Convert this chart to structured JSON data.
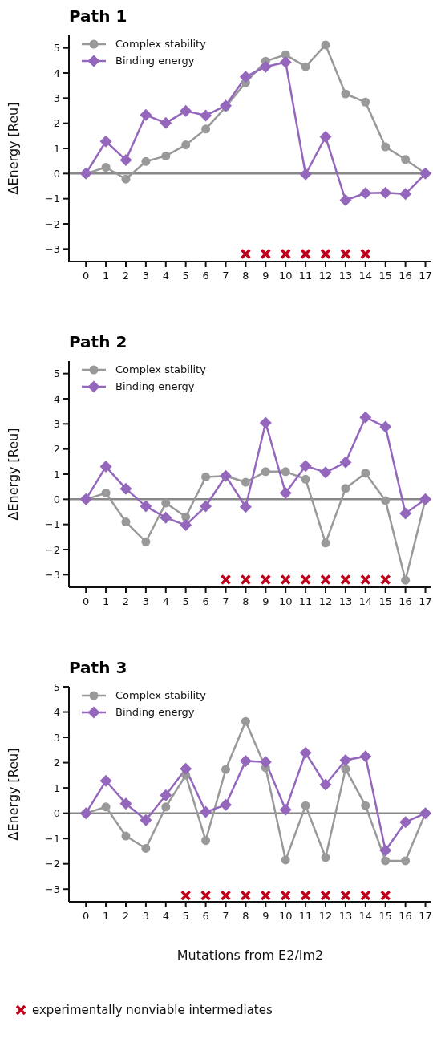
{
  "chart_data": [
    {
      "type": "line",
      "title": "Path 1",
      "ylabel": "ΔEnergy [Reu]",
      "x": [
        0,
        1,
        2,
        3,
        4,
        5,
        6,
        7,
        8,
        9,
        10,
        11,
        12,
        13,
        14,
        15,
        16,
        17
      ],
      "xlim": [
        -0.85,
        17.3
      ],
      "xticks": [
        0,
        1,
        2,
        3,
        4,
        5,
        6,
        7,
        8,
        9,
        10,
        11,
        12,
        13,
        14,
        15,
        16,
        17
      ],
      "ylim": [
        -3.5,
        5.5
      ],
      "yticks": [
        {
          "value": -3,
          "label": "−3"
        },
        {
          "value": -2,
          "label": "−2"
        },
        {
          "value": -1,
          "label": "−1"
        },
        0,
        1,
        2,
        3,
        4,
        5
      ],
      "legend": "top left",
      "line_style": "solid",
      "ref_lines": [
        {
          "axis": "y",
          "value": 0,
          "color": "#888888"
        }
      ],
      "series": [
        {
          "name": "Complex stability",
          "color": "#999999",
          "marker": "circle",
          "values": [
            0,
            0.25,
            -0.22,
            0.48,
            0.7,
            1.14,
            1.77,
            2.65,
            3.62,
            4.47,
            4.73,
            4.25,
            5.12,
            3.17,
            2.84,
            1.06,
            0.56,
            0
          ]
        },
        {
          "name": "Binding energy",
          "color": "#9467bd",
          "marker": "diamond",
          "values": [
            0,
            1.28,
            0.54,
            2.33,
            2.01,
            2.49,
            2.31,
            2.7,
            3.85,
            4.25,
            4.43,
            -0.03,
            1.46,
            -1.06,
            -0.78,
            -0.76,
            -0.81,
            0
          ]
        },
        {
          "type": "scatter",
          "color": "#c0001a",
          "marker": "cross",
          "x": [
            8,
            9,
            10,
            11,
            12,
            13,
            14
          ],
          "values": [
            -3.2,
            -3.2,
            -3.2,
            -3.2,
            -3.2,
            -3.2,
            -3.2
          ]
        }
      ]
    },
    {
      "type": "line",
      "title": "Path 2",
      "ylabel": "ΔEnergy [Reu]",
      "x": [
        0,
        1,
        2,
        3,
        4,
        5,
        6,
        7,
        8,
        9,
        10,
        11,
        12,
        13,
        14,
        15,
        16,
        17
      ],
      "xlim": [
        -0.85,
        17.3
      ],
      "xticks": [
        0,
        1,
        2,
        3,
        4,
        5,
        6,
        7,
        8,
        9,
        10,
        11,
        12,
        13,
        14,
        15,
        16,
        17
      ],
      "ylim": [
        -3.5,
        5.5
      ],
      "yticks": [
        {
          "value": -3,
          "label": "−3"
        },
        {
          "value": -2,
          "label": "−2"
        },
        {
          "value": -1,
          "label": "−1"
        },
        0,
        1,
        2,
        3,
        4,
        5
      ],
      "legend": "top left",
      "line_style": "solid",
      "ref_lines": [
        {
          "axis": "y",
          "value": 0,
          "color": "#888888"
        }
      ],
      "series": [
        {
          "name": "Complex stability",
          "color": "#999999",
          "marker": "circle",
          "values": [
            0,
            0.25,
            -0.9,
            -1.69,
            -0.15,
            -0.7,
            0.89,
            0.93,
            0.68,
            1.1,
            1.1,
            0.8,
            -1.74,
            0.43,
            1.04,
            -0.05,
            -3.22,
            0
          ]
        },
        {
          "name": "Binding energy",
          "color": "#9467bd",
          "marker": "diamond",
          "values": [
            0,
            1.3,
            0.42,
            -0.28,
            -0.73,
            -1.03,
            -0.28,
            0.93,
            -0.3,
            3.04,
            0.25,
            1.33,
            1.07,
            1.47,
            3.26,
            2.88,
            -0.56,
            0
          ]
        },
        {
          "type": "scatter",
          "color": "#c0001a",
          "marker": "cross",
          "x": [
            7,
            8,
            9,
            10,
            11,
            12,
            13,
            14,
            15
          ],
          "values": [
            -3.2,
            -3.2,
            -3.2,
            -3.2,
            -3.2,
            -3.2,
            -3.2,
            -3.2,
            -3.2
          ]
        }
      ]
    },
    {
      "type": "line",
      "title": "Path 3",
      "xlabel": "Mutations from E2/Im2",
      "ylabel": "ΔEnergy [Reu]",
      "x": [
        0,
        1,
        2,
        3,
        4,
        5,
        6,
        7,
        8,
        9,
        10,
        11,
        12,
        13,
        14,
        15,
        16,
        17
      ],
      "xlim": [
        -0.85,
        17.3
      ],
      "xticks": [
        0,
        1,
        2,
        3,
        4,
        5,
        6,
        7,
        8,
        9,
        10,
        11,
        12,
        13,
        14,
        15,
        16,
        17
      ],
      "ylim": [
        -3.5,
        5
      ],
      "yticks": [
        {
          "value": -3,
          "label": "−3"
        },
        {
          "value": -2,
          "label": "−2"
        },
        {
          "value": -1,
          "label": "−1"
        },
        0,
        1,
        2,
        3,
        4,
        5
      ],
      "legend": "top left",
      "line_style": "solid",
      "ref_lines": [
        {
          "axis": "y",
          "value": 0,
          "color": "#888888"
        }
      ],
      "series": [
        {
          "name": "Complex stability",
          "color": "#999999",
          "marker": "circle",
          "values": [
            0,
            0.25,
            -0.9,
            -1.39,
            0.25,
            1.5,
            -1.08,
            1.73,
            3.63,
            1.8,
            -1.85,
            0.3,
            -1.75,
            1.75,
            0.3,
            -1.88,
            -1.88,
            0
          ]
        },
        {
          "name": "Binding energy",
          "color": "#9467bd",
          "marker": "diamond",
          "values": [
            0,
            1.28,
            0.38,
            -0.27,
            0.71,
            1.76,
            0.05,
            0.33,
            2.07,
            2.03,
            0.14,
            2.39,
            1.13,
            2.1,
            2.25,
            -1.47,
            -0.35,
            0
          ]
        },
        {
          "type": "scatter",
          "color": "#c0001a",
          "marker": "cross",
          "x": [
            5,
            6,
            7,
            8,
            9,
            10,
            11,
            12,
            13,
            14,
            15
          ],
          "values": [
            -3.25,
            -3.25,
            -3.25,
            -3.25,
            -3.25,
            -3.25,
            -3.25,
            -3.25,
            -3.25,
            -3.25,
            -3.25
          ]
        }
      ],
      "annotations": [
        "experimentally nonviable intermediates"
      ]
    }
  ]
}
